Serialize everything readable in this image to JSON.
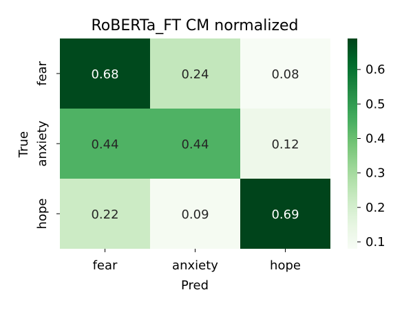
{
  "chart_data": {
    "type": "heatmap",
    "title": "RoBERTa_FT CM normalized",
    "xlabel": "Pred",
    "ylabel": "True",
    "x_categories": [
      "fear",
      "anxiety",
      "hope"
    ],
    "y_categories": [
      "fear",
      "anxiety",
      "hope"
    ],
    "values": [
      [
        0.68,
        0.24,
        0.08
      ],
      [
        0.44,
        0.44,
        0.12
      ],
      [
        0.22,
        0.09,
        0.69
      ]
    ],
    "value_labels": [
      [
        "0.68",
        "0.24",
        "0.08"
      ],
      [
        "0.44",
        "0.44",
        "0.12"
      ],
      [
        "0.22",
        "0.09",
        "0.69"
      ]
    ],
    "colormap": "Greens",
    "vmin": 0.08,
    "vmax": 0.69,
    "colorbar_ticks": [
      0.1,
      0.2,
      0.3,
      0.4,
      0.5,
      0.6
    ],
    "colorbar_tick_labels": [
      "0.1",
      "0.2",
      "0.3",
      "0.4",
      "0.5",
      "0.6"
    ],
    "grid": false
  }
}
